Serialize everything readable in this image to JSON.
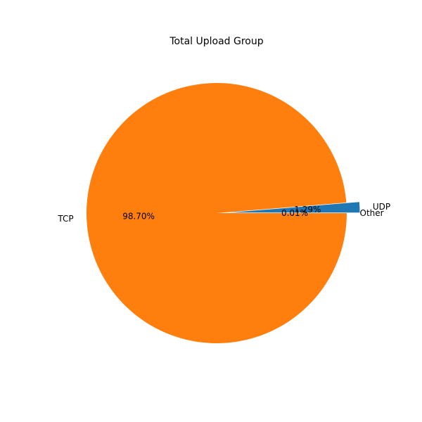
{
  "chart_data": {
    "type": "pie",
    "title": "Total Upload Group",
    "slices": [
      {
        "label": "UDP",
        "value": 1.29,
        "pct_label": "1.29%",
        "color": "#1f77b4",
        "exploded": true
      },
      {
        "label": "TCP",
        "value": 98.7,
        "pct_label": "98.70%",
        "color": "#ff7f0e",
        "exploded": false
      },
      {
        "label": "Other",
        "value": 0.01,
        "pct_label": "0.01%",
        "color": "#2ca02c",
        "exploded": false
      }
    ],
    "legend": "none",
    "grid": false
  }
}
